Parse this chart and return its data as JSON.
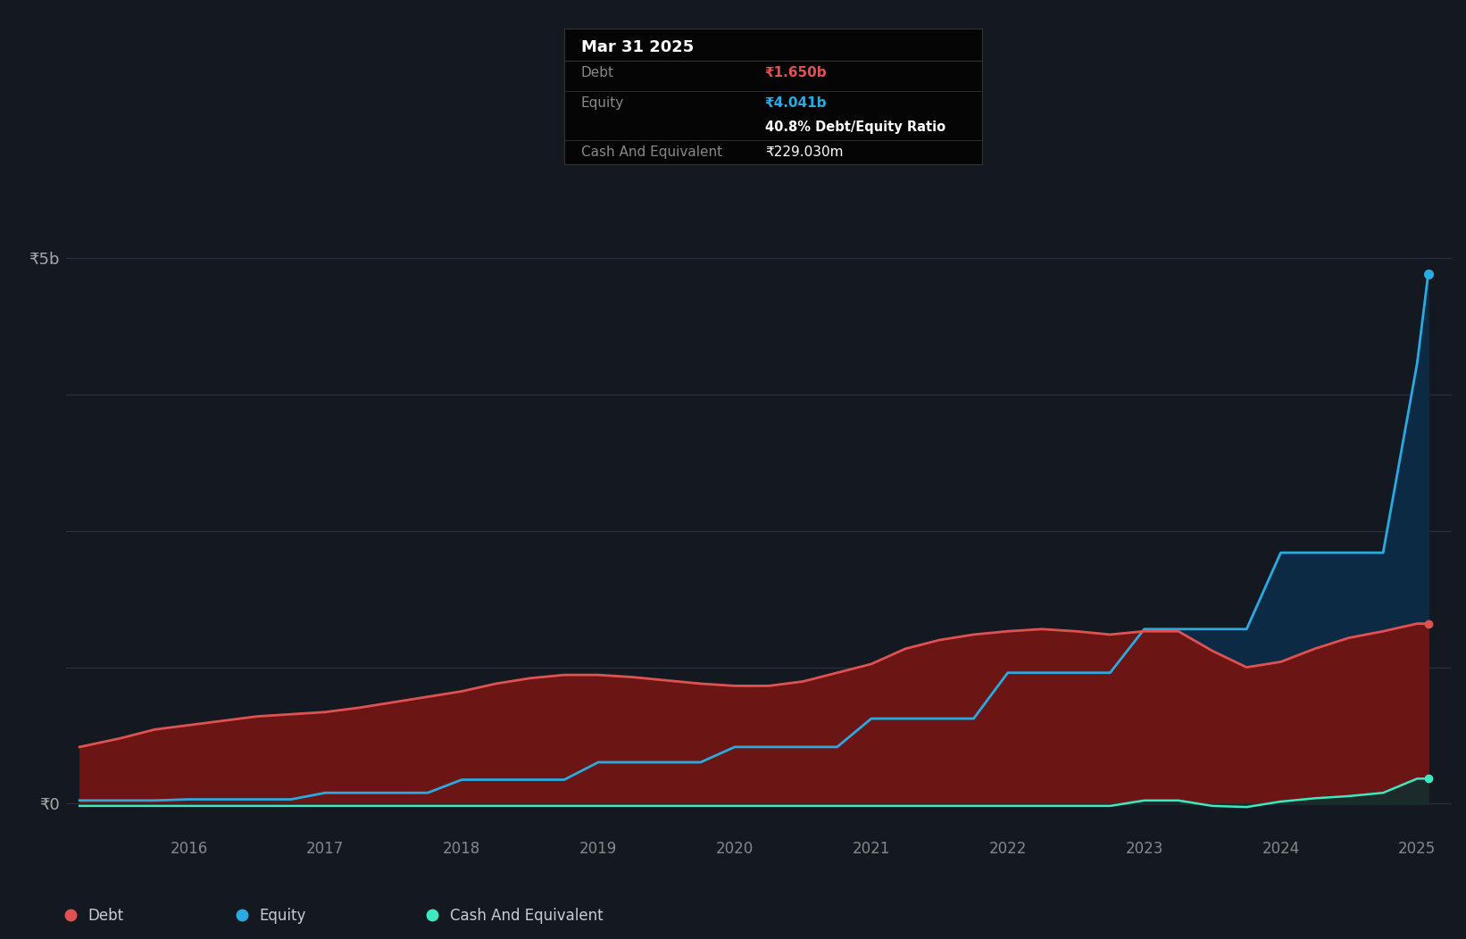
{
  "bg_color": "#141921",
  "plot_bg_color": "#141921",
  "grid_color": "#2a3040",
  "ylabel_5b": "₹5b",
  "ylabel_0": "₹0",
  "x_ticks": [
    2016,
    2017,
    2018,
    2019,
    2020,
    2021,
    2022,
    2023,
    2024,
    2025
  ],
  "debt_color": "#e05252",
  "equity_color": "#29abe2",
  "cash_color": "#3ee8c0",
  "debt_fill": "#6b1515",
  "equity_fill": "#0d2a45",
  "cash_fill": "#0a3030",
  "tooltip_bg": "#050505",
  "tooltip_title": "Mar 31 2025",
  "tooltip_debt_label": "Debt",
  "tooltip_debt_value": "₹1.650b",
  "tooltip_equity_label": "Equity",
  "tooltip_equity_value": "₹4.041b",
  "tooltip_ratio": "40.8% Debt/Equity Ratio",
  "tooltip_cash_label": "Cash And Equivalent",
  "tooltip_cash_value": "₹229.030m",
  "legend_debt": "Debt",
  "legend_equity": "Equity",
  "legend_cash": "Cash And Equivalent",
  "time_points": [
    2015.2,
    2015.5,
    2015.75,
    2016.0,
    2016.25,
    2016.5,
    2016.75,
    2017.0,
    2017.25,
    2017.5,
    2017.75,
    2018.0,
    2018.25,
    2018.5,
    2018.75,
    2019.0,
    2019.25,
    2019.5,
    2019.75,
    2020.0,
    2020.25,
    2020.5,
    2020.75,
    2021.0,
    2021.25,
    2021.5,
    2021.75,
    2022.0,
    2022.25,
    2022.5,
    2022.75,
    2023.0,
    2023.25,
    2023.5,
    2023.75,
    2024.0,
    2024.25,
    2024.5,
    2024.75,
    2025.0,
    2025.08
  ],
  "debt_values": [
    0.52,
    0.6,
    0.68,
    0.72,
    0.76,
    0.8,
    0.82,
    0.84,
    0.88,
    0.93,
    0.98,
    1.03,
    1.1,
    1.15,
    1.18,
    1.18,
    1.16,
    1.13,
    1.1,
    1.08,
    1.08,
    1.12,
    1.2,
    1.28,
    1.42,
    1.5,
    1.55,
    1.58,
    1.6,
    1.58,
    1.55,
    1.58,
    1.58,
    1.4,
    1.25,
    1.3,
    1.42,
    1.52,
    1.58,
    1.65,
    1.65
  ],
  "equity_values": [
    0.03,
    0.03,
    0.03,
    0.04,
    0.04,
    0.04,
    0.04,
    0.1,
    0.1,
    0.1,
    0.1,
    0.22,
    0.22,
    0.22,
    0.22,
    0.38,
    0.38,
    0.38,
    0.38,
    0.52,
    0.52,
    0.52,
    0.52,
    0.78,
    0.78,
    0.78,
    0.78,
    1.2,
    1.2,
    1.2,
    1.2,
    1.6,
    1.6,
    1.6,
    1.6,
    2.3,
    2.3,
    2.3,
    2.3,
    4.04,
    4.85
  ],
  "cash_values": [
    -0.02,
    -0.02,
    -0.02,
    -0.02,
    -0.02,
    -0.02,
    -0.02,
    -0.02,
    -0.02,
    -0.02,
    -0.02,
    -0.02,
    -0.02,
    -0.02,
    -0.02,
    -0.02,
    -0.02,
    -0.02,
    -0.02,
    -0.02,
    -0.02,
    -0.02,
    -0.02,
    -0.02,
    -0.02,
    -0.02,
    -0.02,
    -0.02,
    -0.02,
    -0.02,
    -0.02,
    0.03,
    0.03,
    -0.02,
    -0.03,
    0.02,
    0.05,
    0.07,
    0.1,
    0.23,
    0.23
  ],
  "ylim": [
    -0.25,
    5.6
  ],
  "xlim": [
    2015.1,
    2025.25
  ],
  "y_gridlines": [
    0.0,
    1.25,
    2.5,
    3.75,
    5.0
  ]
}
